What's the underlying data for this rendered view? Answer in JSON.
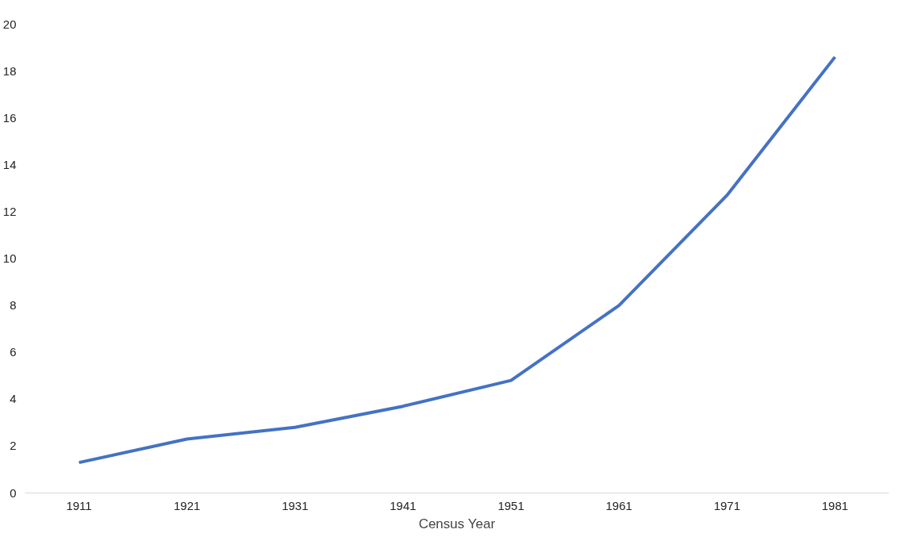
{
  "chart_data": {
    "type": "line",
    "xlabel": "Census Year",
    "categories": [
      "1911",
      "1921",
      "1931",
      "1941",
      "1951",
      "1961",
      "1971",
      "1981"
    ],
    "series": [
      {
        "color": "#4472c4",
        "values": [
          1.3,
          2.3,
          2.8,
          3.7,
          4.8,
          8.0,
          12.7,
          18.6
        ]
      }
    ],
    "ylim": [
      0,
      20
    ],
    "yticks": [
      0,
      2,
      4,
      6,
      8,
      10,
      12,
      14,
      16,
      18,
      20
    ],
    "grid": false,
    "marker": "none",
    "line_style": "solid"
  }
}
